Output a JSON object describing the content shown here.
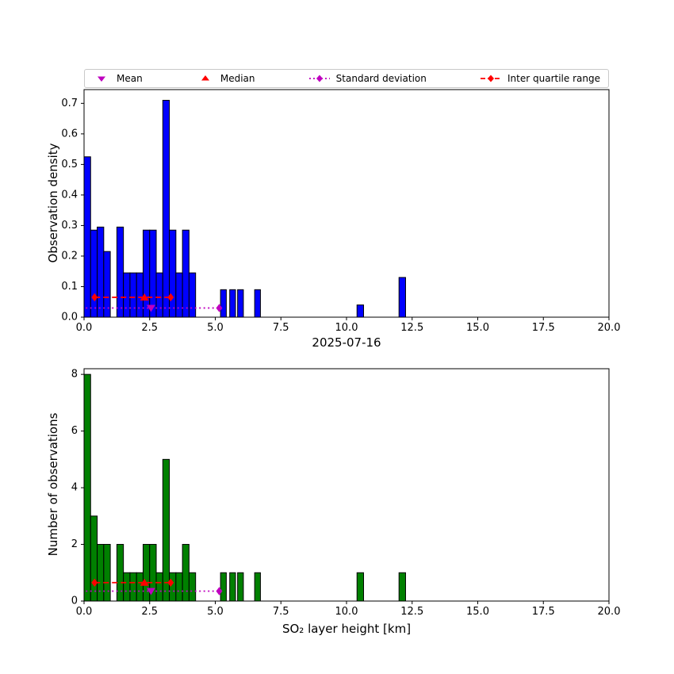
{
  "page": {
    "title": "2025-07-16",
    "xlabel": "SO₂ layer height [km]"
  },
  "colors": {
    "density_bars": "#0000ff",
    "count_bars": "#008000",
    "bar_edge": "#000000",
    "mean_std": "#bf00bf",
    "median_iqr": "#ff0000",
    "legend_border": "#c9c9c9"
  },
  "legend": {
    "items": [
      {
        "label": "Mean",
        "marker": "magenta-down-triangle"
      },
      {
        "label": "Median",
        "marker": "red-up-triangle"
      },
      {
        "label": "Standard deviation",
        "marker": "magenta-diamond-dotted-line"
      },
      {
        "label": "Inter quartile range",
        "marker": "red-diamond-dashed-line"
      }
    ]
  },
  "chart_data": [
    {
      "type": "bar",
      "name": "observation-density",
      "ylabel": "Observation density",
      "xlim": [
        0,
        20
      ],
      "ylim": [
        0,
        0.745
      ],
      "xticks": [
        0,
        2.5,
        5,
        7.5,
        10,
        12.5,
        15,
        17.5,
        20
      ],
      "xtick_labels": [
        "0.0",
        "2.5",
        "5.0",
        "7.5",
        "10.0",
        "12.5",
        "15.0",
        "17.5",
        "20.0"
      ],
      "yticks": [
        0,
        0.1,
        0.2,
        0.3,
        0.4,
        0.5,
        0.6,
        0.7
      ],
      "ytick_labels": [
        "0.0",
        "0.1",
        "0.2",
        "0.3",
        "0.4",
        "0.5",
        "0.6",
        "0.7"
      ],
      "grid": false,
      "bin_width": 0.25,
      "bar_color": "#0000ff",
      "bars": [
        {
          "x": 0.0,
          "h": 0.525
        },
        {
          "x": 0.25,
          "h": 0.285
        },
        {
          "x": 0.5,
          "h": 0.295
        },
        {
          "x": 0.75,
          "h": 0.215
        },
        {
          "x": 1.25,
          "h": 0.295
        },
        {
          "x": 1.5,
          "h": 0.145
        },
        {
          "x": 1.75,
          "h": 0.145
        },
        {
          "x": 2.0,
          "h": 0.145
        },
        {
          "x": 2.25,
          "h": 0.285
        },
        {
          "x": 2.5,
          "h": 0.285
        },
        {
          "x": 2.75,
          "h": 0.145
        },
        {
          "x": 3.0,
          "h": 0.71
        },
        {
          "x": 3.25,
          "h": 0.285
        },
        {
          "x": 3.5,
          "h": 0.145
        },
        {
          "x": 3.75,
          "h": 0.285
        },
        {
          "x": 4.0,
          "h": 0.145
        },
        {
          "x": 5.2,
          "h": 0.09,
          "w": 0.22
        },
        {
          "x": 5.55,
          "h": 0.09,
          "w": 0.22
        },
        {
          "x": 5.85,
          "h": 0.09,
          "w": 0.22
        },
        {
          "x": 6.5,
          "h": 0.09,
          "w": 0.22
        },
        {
          "x": 10.4,
          "h": 0.04
        },
        {
          "x": 12.0,
          "h": 0.13
        }
      ],
      "markers": {
        "mean": {
          "x": 2.55,
          "y": 0.03
        },
        "median": {
          "x": 2.3,
          "y": 0.065
        },
        "std_line": {
          "x1": -0.1,
          "x2": 5.15,
          "y": 0.03
        },
        "iqr_line": {
          "x1": 0.4,
          "x2": 3.3,
          "y": 0.065
        }
      }
    },
    {
      "type": "bar",
      "name": "number-of-observations",
      "ylabel": "Number of observations",
      "xlim": [
        0,
        20
      ],
      "ylim": [
        0,
        8.2
      ],
      "xticks": [
        0,
        2.5,
        5,
        7.5,
        10,
        12.5,
        15,
        17.5,
        20
      ],
      "xtick_labels": [
        "0.0",
        "2.5",
        "5.0",
        "7.5",
        "10.0",
        "12.5",
        "15.0",
        "17.5",
        "20.0"
      ],
      "yticks": [
        0,
        2,
        4,
        6,
        8
      ],
      "ytick_labels": [
        "0",
        "2",
        "4",
        "6",
        "8"
      ],
      "grid": false,
      "bin_width": 0.25,
      "bar_color": "#008000",
      "bars": [
        {
          "x": 0.0,
          "h": 8
        },
        {
          "x": 0.25,
          "h": 3
        },
        {
          "x": 0.5,
          "h": 2
        },
        {
          "x": 0.75,
          "h": 2
        },
        {
          "x": 1.25,
          "h": 2
        },
        {
          "x": 1.5,
          "h": 1
        },
        {
          "x": 1.75,
          "h": 1
        },
        {
          "x": 2.0,
          "h": 1
        },
        {
          "x": 2.25,
          "h": 2
        },
        {
          "x": 2.5,
          "h": 2
        },
        {
          "x": 2.75,
          "h": 1
        },
        {
          "x": 3.0,
          "h": 5
        },
        {
          "x": 3.25,
          "h": 1
        },
        {
          "x": 3.5,
          "h": 1
        },
        {
          "x": 3.75,
          "h": 2
        },
        {
          "x": 4.0,
          "h": 1
        },
        {
          "x": 5.2,
          "h": 1,
          "w": 0.22
        },
        {
          "x": 5.55,
          "h": 1,
          "w": 0.22
        },
        {
          "x": 5.85,
          "h": 1,
          "w": 0.22
        },
        {
          "x": 6.5,
          "h": 1,
          "w": 0.22
        },
        {
          "x": 10.4,
          "h": 1
        },
        {
          "x": 12.0,
          "h": 1
        }
      ],
      "markers": {
        "mean": {
          "x": 2.55,
          "y": 0.35
        },
        "median": {
          "x": 2.3,
          "y": 0.65
        },
        "std_line": {
          "x1": -0.1,
          "x2": 5.15,
          "y": 0.35
        },
        "iqr_line": {
          "x1": 0.4,
          "x2": 3.3,
          "y": 0.65
        }
      }
    }
  ]
}
